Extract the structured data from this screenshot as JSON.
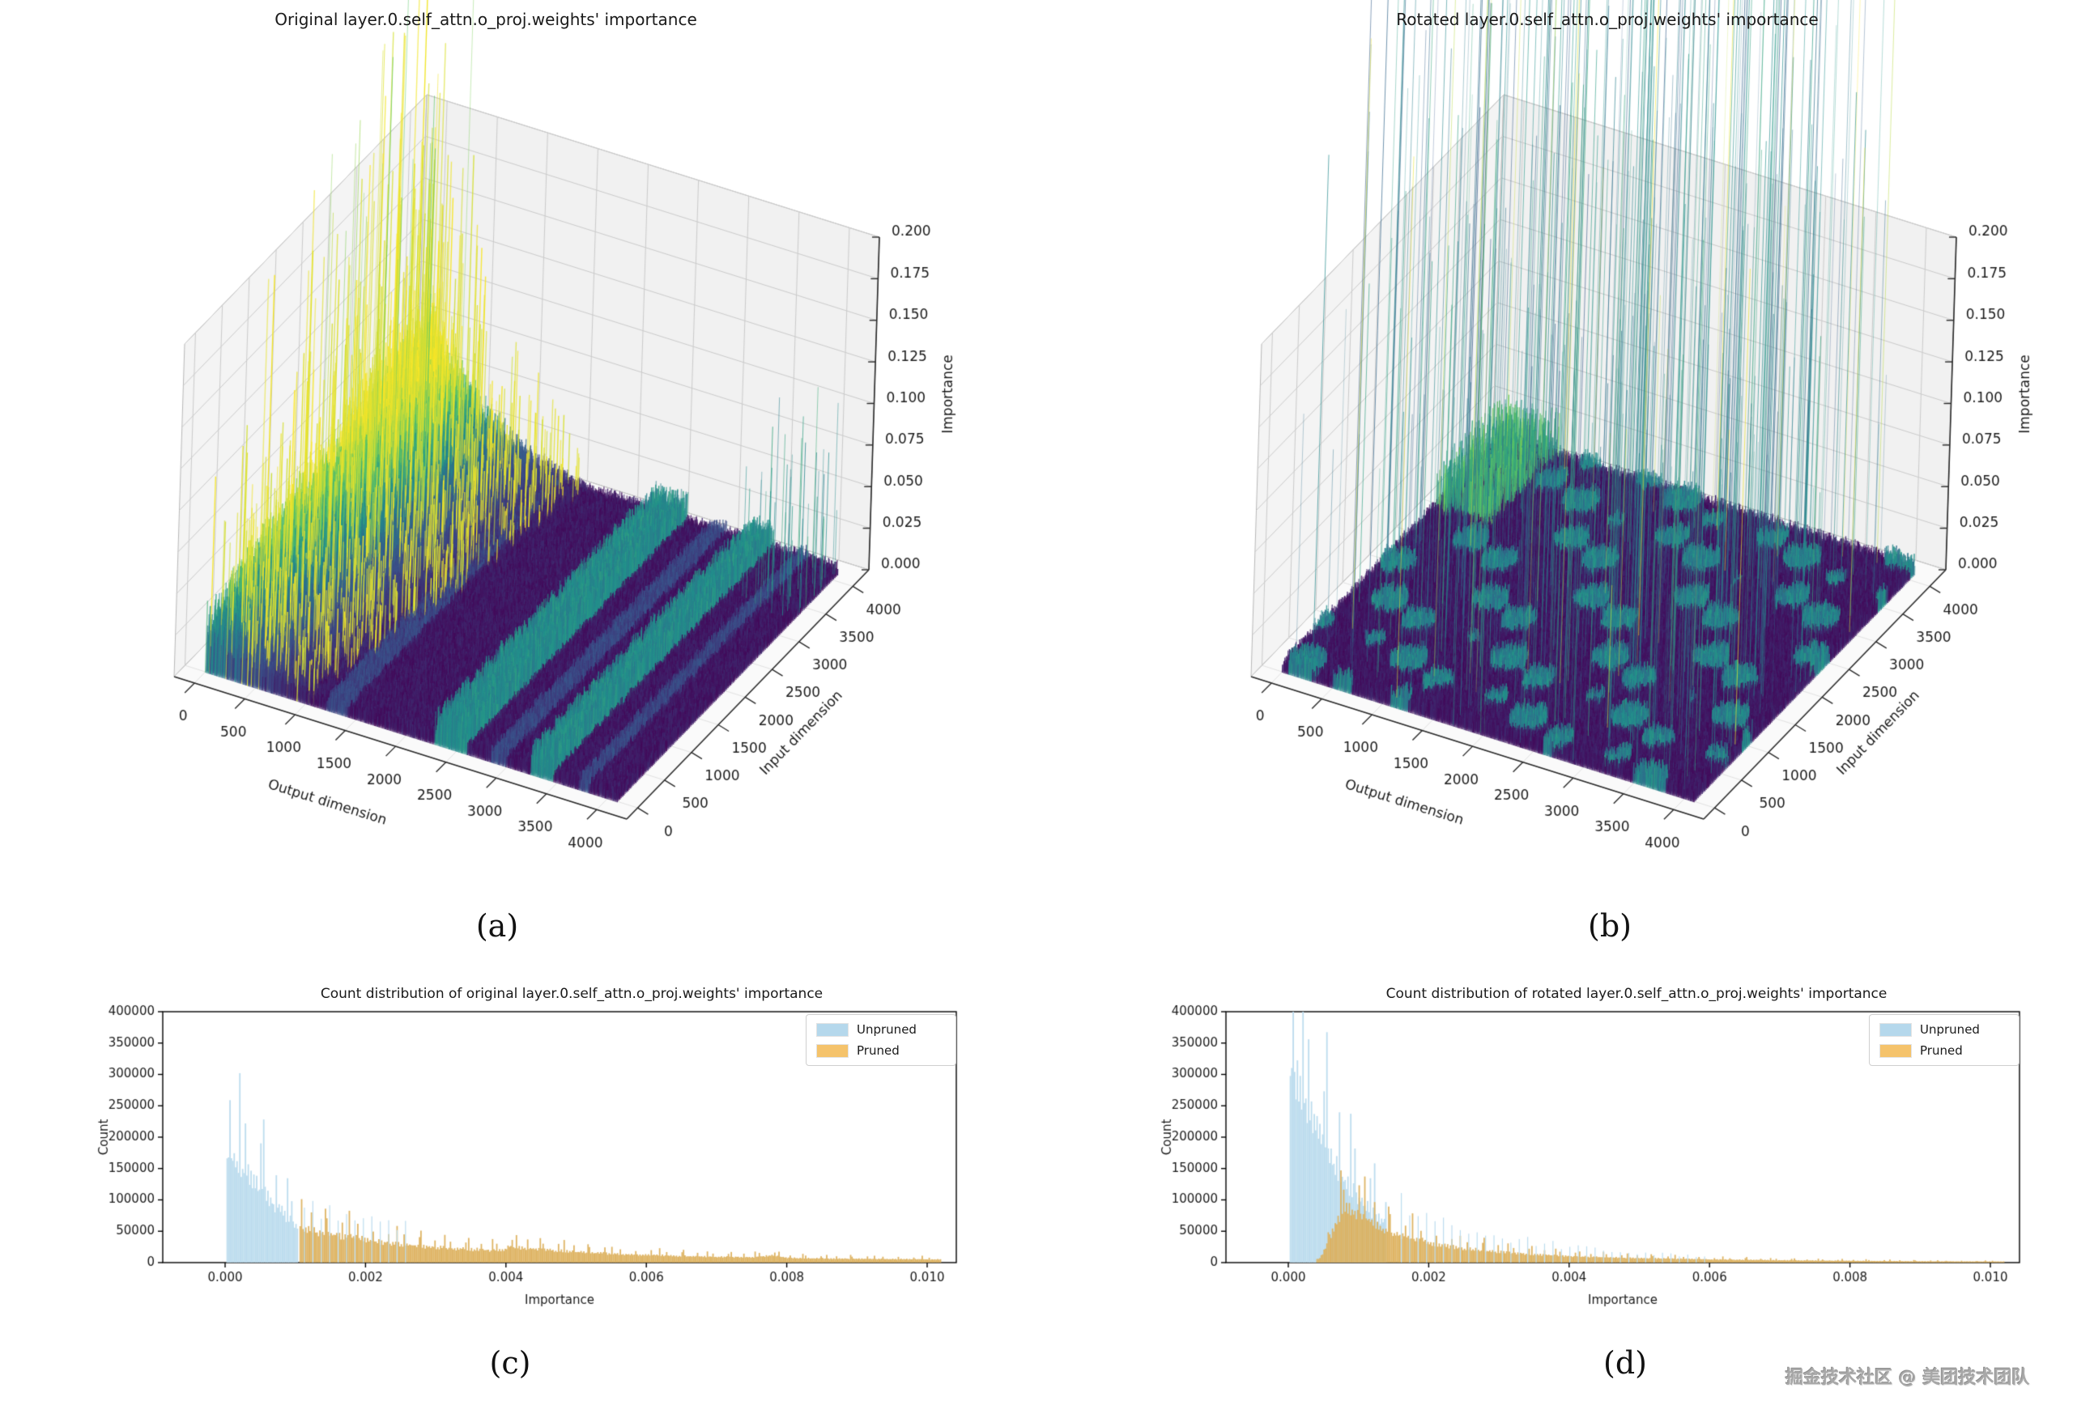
{
  "page": {
    "watermark": "掘金技术社区 @ 美团技术团队",
    "background": "#ffffff"
  },
  "subplot_labels": {
    "a": "(a)",
    "b": "(b)",
    "c": "(c)",
    "d": "(d)"
  },
  "chart_data": [
    {
      "id": "c-a",
      "type": "surface3d",
      "title": "Original layer.0.self_attn.o_proj.weights' importance",
      "xlabel": "Output dimension",
      "ylabel": "Input dimension",
      "zlabel": "Importance",
      "x_ticks": [
        0,
        500,
        1000,
        1500,
        2000,
        2500,
        3000,
        3500,
        4000
      ],
      "y_ticks": [
        0,
        500,
        1000,
        1500,
        2000,
        2500,
        3000,
        3500,
        4000
      ],
      "z_tick_labels": [
        "0.000",
        "0.025",
        "0.050",
        "0.075",
        "0.100",
        "0.125",
        "0.150",
        "0.175",
        "0.200"
      ],
      "x_range": [
        0,
        4096
      ],
      "y_range": [
        0,
        4096
      ],
      "z_range": [
        0,
        0.2
      ],
      "colormap": "viridis",
      "description": "Viridis surface: high green/yellow ridge along low output dimensions, flat purple field elsewhere with teal diagonal bands and sparse tall spikes near the back corner.",
      "features": {
        "seed": 11,
        "base_color_range": [
          0.02,
          0.13
        ],
        "base_height_range": [
          0.003,
          0.009
        ],
        "ridge": {
          "u_decay": 0.16,
          "peak": 0.055,
          "front_gain": 0.55,
          "back_gain": 0.75,
          "spike_prob": 0.035
        },
        "teal_bands_u": [
          [
            0.555,
            0.635
          ],
          [
            0.79,
            0.845
          ]
        ],
        "faint_bands_u": [
          [
            0.295,
            0.345
          ],
          [
            0.695,
            0.73
          ],
          [
            0.905,
            0.93
          ]
        ],
        "tall_spikes": {
          "count": 30,
          "u_max": 0.12,
          "v_range": [
            0.45,
            0.95
          ],
          "z_range": [
            0.08,
            0.33
          ]
        },
        "corner_spikes": {
          "count": 45,
          "u_range": [
            0.86,
            1.0
          ],
          "v_range": [
            0.8,
            1.0
          ],
          "z_range": [
            0.02,
            0.11
          ]
        }
      }
    },
    {
      "id": "c-b",
      "type": "surface3d",
      "title": "Rotated layer.0.self_attn.o_proj.weights' importance",
      "xlabel": "Output dimension",
      "ylabel": "Input dimension",
      "zlabel": "Importance",
      "x_ticks": [
        0,
        500,
        1000,
        1500,
        2000,
        2500,
        3000,
        3500,
        4000
      ],
      "y_ticks": [
        0,
        500,
        1000,
        1500,
        2000,
        2500,
        3000,
        3500,
        4000
      ],
      "z_tick_labels": [
        "0.000",
        "0.025",
        "0.050",
        "0.075",
        "0.100",
        "0.125",
        "0.150",
        "0.175",
        "0.200"
      ],
      "x_range": [
        0,
        4096
      ],
      "y_range": [
        0,
        4096
      ],
      "z_range": [
        0,
        0.2
      ],
      "colormap": "viridis",
      "description": "Mostly flat purple surface with teal mottling; many thin tall blue/teal spikes rising far above the axis box across the whole plane.",
      "features": {
        "seed": 29,
        "base_color_range": [
          0.02,
          0.13
        ],
        "base_height_range": [
          0.003,
          0.01
        ],
        "mottle": {
          "threshold": 1.15,
          "color": [
            0.33,
            0.55
          ],
          "height": [
            0.005,
            0.014
          ]
        },
        "back_patch": {
          "u_max": 0.14,
          "v_min": 0.68,
          "prob": 0.25,
          "color": [
            0.5,
            0.8
          ],
          "height": [
            0.008,
            0.035
          ]
        },
        "rain_spikes": {
          "count": 460,
          "z_range": [
            0.08,
            0.52
          ],
          "yellow_prob": 0.05
        }
      }
    },
    {
      "id": "c-c",
      "type": "histogram",
      "title": "Count distribution of original layer.0.self_attn.o_proj.weights' importance",
      "xlabel": "Importance",
      "ylabel": "Count",
      "x_tick_labels": [
        "0.000",
        "0.002",
        "0.004",
        "0.006",
        "0.008",
        "0.010"
      ],
      "x_tick_values": [
        0,
        0.002,
        0.004,
        0.006,
        0.008,
        0.01
      ],
      "y_ticks": [
        0,
        50000,
        100000,
        150000,
        200000,
        250000,
        300000,
        350000,
        400000
      ],
      "xlim": [
        -0.0009,
        0.0104
      ],
      "ylim": [
        0,
        400000
      ],
      "legend": [
        {
          "label": "Unpruned",
          "color": "#b5d8ec"
        },
        {
          "label": "Pruned",
          "color": "#f5c36b"
        }
      ],
      "seed": 3,
      "bin_width": 2e-05,
      "series": [
        {
          "name": "Unpruned",
          "color": "#bcdcee",
          "envelope": [
            [
              2e-05,
              183000
            ],
            [
              0.0001,
              178000
            ],
            [
              0.0002,
              168000
            ],
            [
              0.0003,
              152000
            ],
            [
              0.0004,
              138000
            ],
            [
              0.0005,
              125000
            ],
            [
              0.0006,
              112000
            ],
            [
              0.0007,
              100000
            ],
            [
              0.0008,
              88000
            ],
            [
              0.0009,
              75000
            ],
            [
              0.001,
              62000
            ],
            [
              0.00105,
              57000
            ]
          ],
          "sparse_envelope": [
            [
              0.0011,
              90000
            ],
            [
              0.0013,
              82000
            ],
            [
              0.0015,
              74000
            ],
            [
              0.0018,
              66000
            ],
            [
              0.002,
              62000
            ],
            [
              0.0023,
              58000
            ],
            [
              0.0026,
              54000
            ]
          ],
          "sparse_step": 6
        },
        {
          "name": "Pruned",
          "color": "#dcb05c",
          "envelope": [
            [
              0.00106,
              55000
            ],
            [
              0.0012,
              54000
            ],
            [
              0.0014,
              50000
            ],
            [
              0.0016,
              46000
            ],
            [
              0.0018,
              42000
            ],
            [
              0.002,
              39000
            ],
            [
              0.0022,
              35000
            ],
            [
              0.0024,
              32000
            ],
            [
              0.0026,
              30000
            ],
            [
              0.003,
              26000
            ],
            [
              0.0034,
              23000
            ],
            [
              0.0038,
              21000
            ],
            [
              0.00398,
              20000
            ],
            [
              0.00402,
              27000
            ],
            [
              0.0042,
              25000
            ],
            [
              0.0045,
              22000
            ],
            [
              0.005,
              18000
            ],
            [
              0.0055,
              15000
            ],
            [
              0.006,
              13000
            ],
            [
              0.0065,
              11000
            ],
            [
              0.007,
              10000
            ],
            [
              0.0075,
              9500
            ],
            [
              0.0078,
              12000
            ],
            [
              0.008,
              8000
            ],
            [
              0.0085,
              7000
            ],
            [
              0.009,
              6500
            ],
            [
              0.0095,
              6000
            ],
            [
              0.0102,
              5500
            ]
          ]
        }
      ]
    },
    {
      "id": "c-d",
      "type": "histogram",
      "title": "Count distribution of rotated layer.0.self_attn.o_proj.weights' importance",
      "xlabel": "Importance",
      "ylabel": "Count",
      "x_tick_labels": [
        "0.000",
        "0.002",
        "0.004",
        "0.006",
        "0.008",
        "0.010"
      ],
      "x_tick_values": [
        0,
        0.002,
        0.004,
        0.006,
        0.008,
        0.01
      ],
      "y_ticks": [
        0,
        50000,
        100000,
        150000,
        200000,
        250000,
        300000,
        350000,
        400000
      ],
      "xlim": [
        -0.0009,
        0.0104
      ],
      "ylim": [
        0,
        400000
      ],
      "legend": [
        {
          "label": "Unpruned",
          "color": "#b5d8ec"
        },
        {
          "label": "Pruned",
          "color": "#f5c36b"
        }
      ],
      "seed": 17,
      "bin_width": 2e-05,
      "series": [
        {
          "name": "Unpruned",
          "color": "#bcdcee",
          "envelope": [
            [
              2e-05,
              330000
            ],
            [
              0.0001,
              320000
            ],
            [
              0.0002,
              285000
            ],
            [
              0.0003,
              255000
            ],
            [
              0.0004,
              230000
            ],
            [
              0.0005,
              205000
            ],
            [
              0.0006,
              180000
            ],
            [
              0.0007,
              160000
            ],
            [
              0.0008,
              140000
            ],
            [
              0.0009,
              125000
            ],
            [
              0.001,
              110000
            ],
            [
              0.0011,
              95000
            ],
            [
              0.0012,
              85000
            ],
            [
              0.0013,
              75000
            ],
            [
              0.0014,
              65000
            ]
          ],
          "sparse_envelope": [
            [
              0.0015,
              100000
            ],
            [
              0.0017,
              85000
            ],
            [
              0.002,
              68000
            ],
            [
              0.0024,
              52000
            ],
            [
              0.003,
              40000
            ],
            [
              0.0036,
              30000
            ],
            [
              0.0045,
              20000
            ],
            [
              0.0055,
              12000
            ],
            [
              0.006,
              8000
            ]
          ],
          "sparse_step": 6
        },
        {
          "name": "Pruned",
          "color": "#dcb05c",
          "envelope": [
            [
              0.0004,
              2000
            ],
            [
              0.00045,
              8000
            ],
            [
              0.0005,
              18000
            ],
            [
              0.00055,
              30000
            ],
            [
              0.0006,
              45000
            ],
            [
              0.00065,
              60000
            ],
            [
              0.0007,
              72000
            ],
            [
              0.00075,
              82000
            ],
            [
              0.0008,
              88000
            ],
            [
              0.00085,
              90000
            ],
            [
              0.0009,
              88000
            ],
            [
              0.001,
              82000
            ],
            [
              0.0011,
              74000
            ],
            [
              0.0012,
              67000
            ],
            [
              0.0013,
              60000
            ],
            [
              0.0014,
              55000
            ],
            [
              0.0015,
              50000
            ],
            [
              0.0017,
              43000
            ],
            [
              0.002,
              34000
            ],
            [
              0.0022,
              29000
            ],
            [
              0.0025,
              24000
            ],
            [
              0.003,
              18000
            ],
            [
              0.0035,
              14000
            ],
            [
              0.004,
              11000
            ],
            [
              0.0045,
              9000
            ],
            [
              0.005,
              7500
            ],
            [
              0.006,
              5500
            ],
            [
              0.007,
              4000
            ],
            [
              0.008,
              3000
            ],
            [
              0.009,
              2200
            ],
            [
              0.0102,
              1800
            ]
          ]
        }
      ]
    }
  ]
}
